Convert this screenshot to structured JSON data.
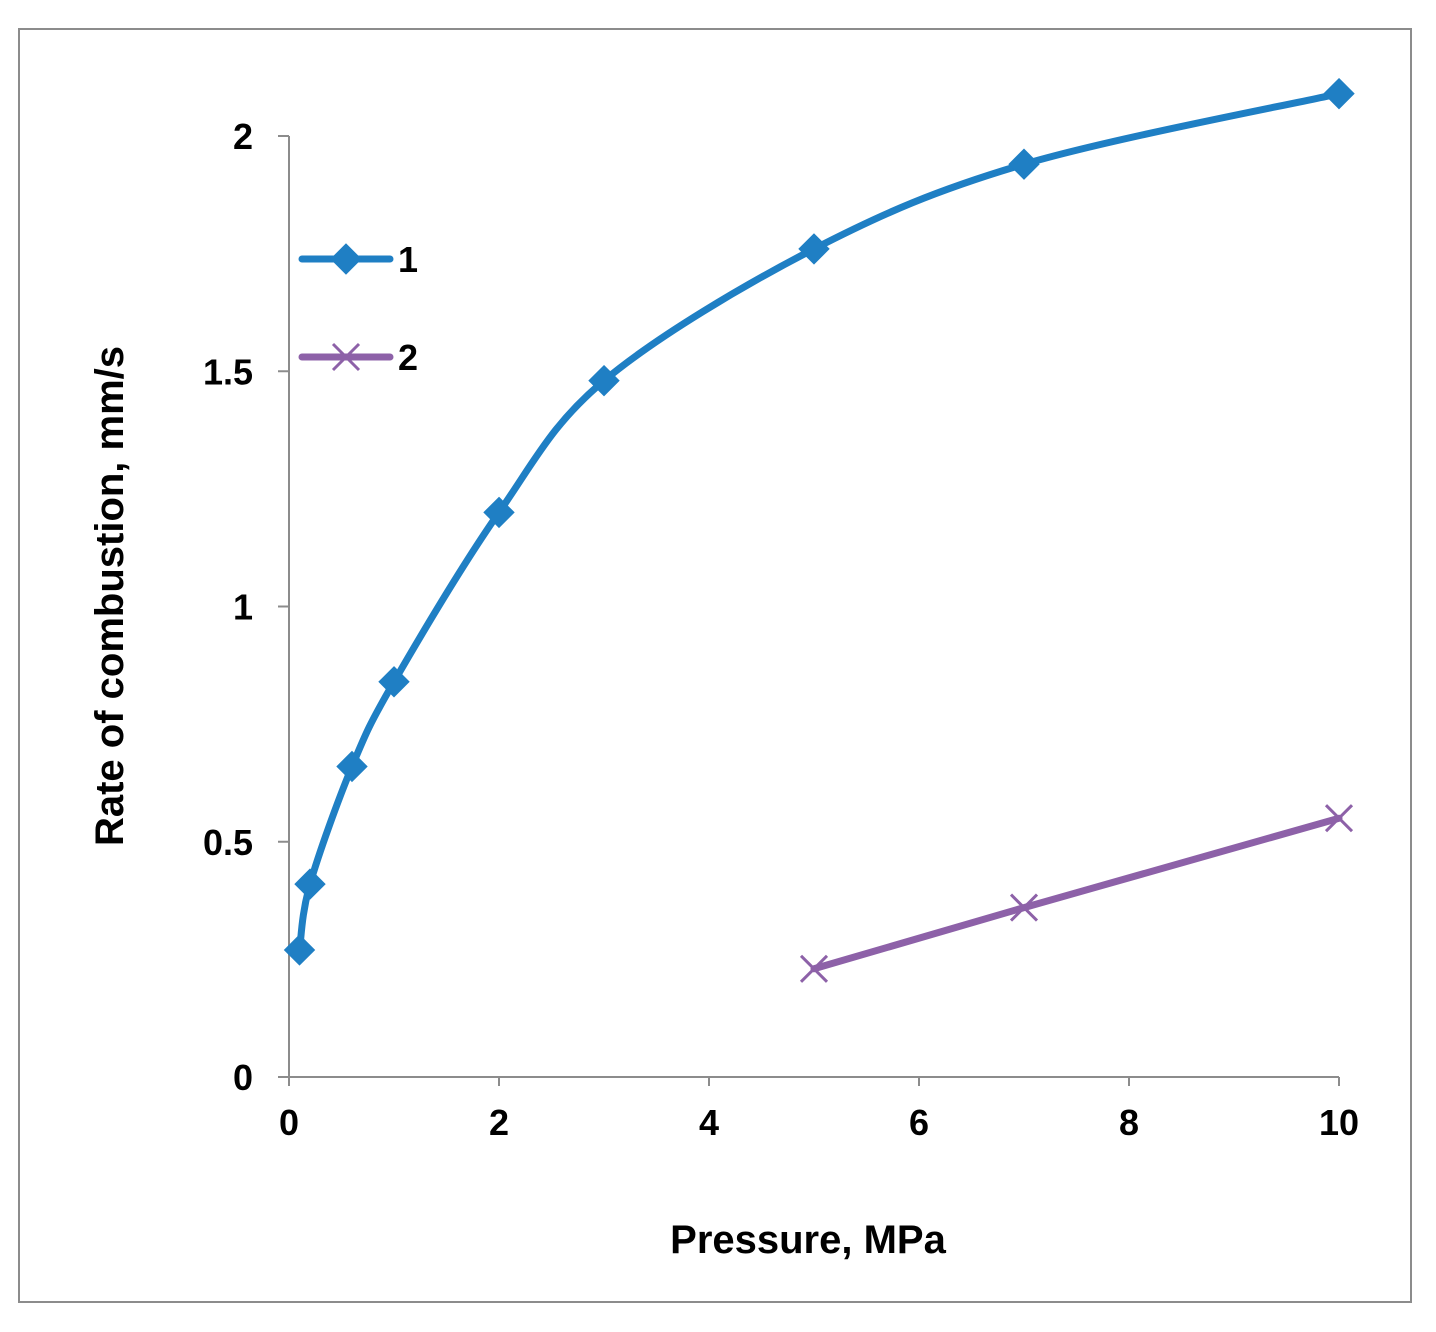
{
  "chart_data": {
    "type": "line",
    "title": "",
    "xlabel": "Pressure, MPa",
    "ylabel": "Rate of combustion, mm/s",
    "xlim": [
      0,
      10
    ],
    "ylim": [
      0,
      2
    ],
    "xticks": [
      0,
      2,
      4,
      6,
      8,
      10
    ],
    "xtick_labels": [
      "0",
      "2",
      "4",
      "6",
      "8",
      "10"
    ],
    "yticks": [
      0,
      0.5,
      1,
      1.5,
      2
    ],
    "ytick_labels": [
      "0",
      "0.5",
      "1",
      "1.5",
      "2"
    ],
    "grid": false,
    "legend_position": "top-left",
    "series": [
      {
        "name": "1",
        "color": "#1f7fc4",
        "marker": "diamond",
        "x": [
          0.1,
          0.2,
          0.6,
          1,
          2,
          3,
          5,
          7,
          10
        ],
        "y": [
          0.27,
          0.41,
          0.66,
          0.84,
          1.2,
          1.48,
          1.76,
          1.94,
          2.09
        ]
      },
      {
        "name": "2",
        "color": "#8d61a8",
        "marker": "x",
        "x": [
          5,
          7,
          10
        ],
        "y": [
          0.23,
          0.36,
          0.55
        ]
      }
    ]
  }
}
